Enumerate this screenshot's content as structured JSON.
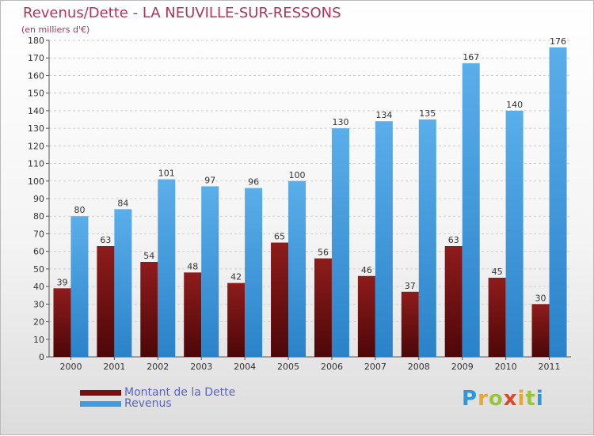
{
  "header": {
    "title": "Revenus/Dette - LA NEUVILLE-SUR-RESSONS",
    "subtitle": "(en milliers d'€)"
  },
  "logo": {
    "text": "Proxiti",
    "colors": [
      "#2f97d6",
      "#e8a630",
      "#9bc33f",
      "#d9482f"
    ]
  },
  "chart_data": {
    "type": "bar",
    "categories": [
      "2000",
      "2001",
      "2002",
      "2003",
      "2004",
      "2005",
      "2006",
      "2007",
      "2008",
      "2009",
      "2010",
      "2011"
    ],
    "series": [
      {
        "name": "Montant de la Dette",
        "color": "#7a0f10",
        "values": [
          39,
          63,
          54,
          48,
          42,
          65,
          56,
          46,
          37,
          63,
          45,
          30
        ]
      },
      {
        "name": "Revenus",
        "color": "#3d9be0",
        "values": [
          80,
          84,
          101,
          97,
          96,
          100,
          130,
          134,
          135,
          167,
          140,
          176
        ]
      }
    ],
    "ylim": [
      0,
      180
    ],
    "yticks": [
      0,
      10,
      20,
      30,
      40,
      50,
      60,
      70,
      80,
      90,
      100,
      110,
      120,
      130,
      140,
      150,
      160,
      170,
      180
    ],
    "grid": true,
    "legend": "bottom-left"
  }
}
